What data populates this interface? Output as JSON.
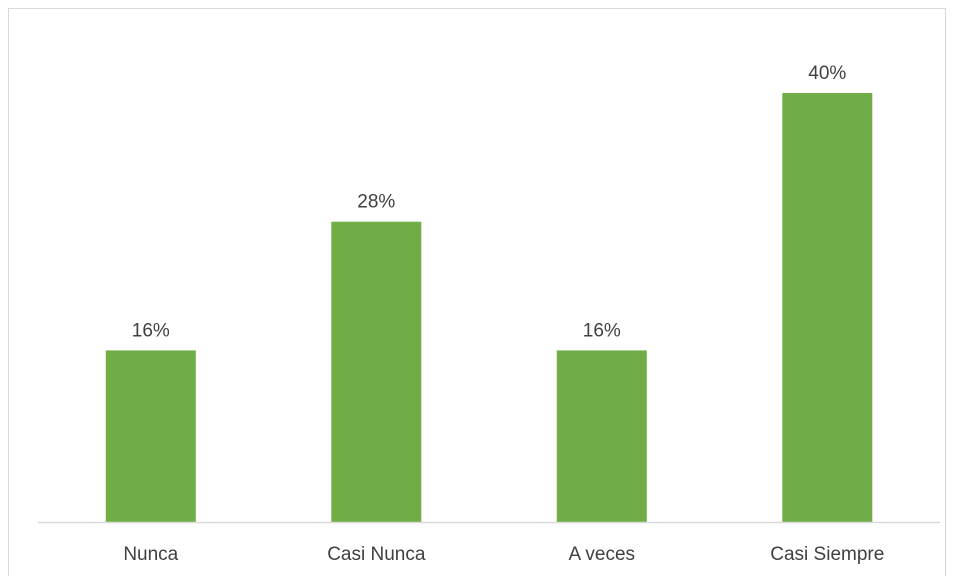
{
  "chart_data": {
    "type": "bar",
    "categories": [
      "Nunca",
      "Casi Nunca",
      "A veces",
      "Casi Siempre"
    ],
    "values": [
      16,
      28,
      16,
      40
    ],
    "data_labels": [
      "16%",
      "28%",
      "16%",
      "40%"
    ],
    "ylim": [
      0,
      40
    ],
    "grid": false,
    "legend": "none",
    "bar_color": "#70ad47",
    "axis_color": "#d9d9d9",
    "text_color": "#404040"
  }
}
